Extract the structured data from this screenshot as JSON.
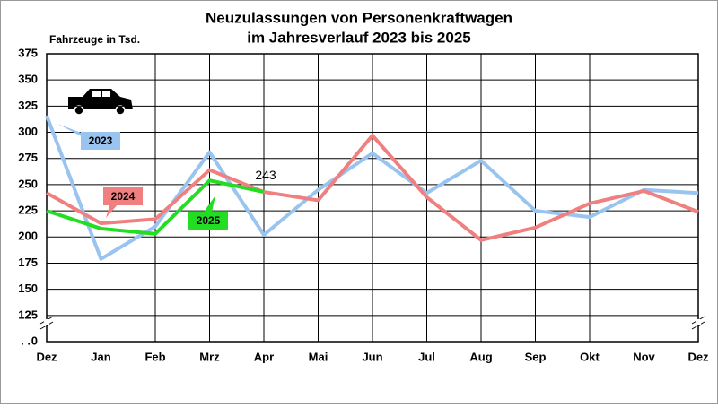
{
  "chart_data": {
    "type": "line",
    "title": [
      "Neuzulassungen von Personenkraftwagen",
      "im Jahresverlauf 2023 bis 2025"
    ],
    "y_axis_label": "Fahrzeuge in Tsd.",
    "categories": [
      "Dez",
      "Jan",
      "Feb",
      "Mrz",
      "Apr",
      "Mai",
      "Jun",
      "Jul",
      "Aug",
      "Sep",
      "Okt",
      "Nov",
      "Dez"
    ],
    "series": [
      {
        "name": "2023",
        "color": "#99c4f0",
        "values": [
          316,
          179,
          210,
          281,
          202,
          245,
          280,
          242,
          273,
          225,
          219,
          245,
          242
        ]
      },
      {
        "name": "2024",
        "color": "#f08080",
        "values": [
          242,
          213,
          217,
          264,
          243,
          235,
          297,
          238,
          197,
          209,
          232,
          244,
          224
        ]
      },
      {
        "name": "2025",
        "color": "#22dd22",
        "values": [
          225,
          208,
          203,
          254,
          243,
          null,
          null,
          null,
          null,
          null,
          null,
          null,
          null
        ],
        "value_labels": [
          null,
          null,
          null,
          null,
          "243",
          null,
          null,
          null,
          null,
          null,
          null,
          null,
          null
        ]
      }
    ],
    "ylim": [
      100,
      375
    ],
    "yticks": [
      125,
      150,
      175,
      200,
      225,
      250,
      275,
      300,
      325,
      350,
      375
    ],
    "y_axis_bottom_label": "0",
    "grid": true
  }
}
